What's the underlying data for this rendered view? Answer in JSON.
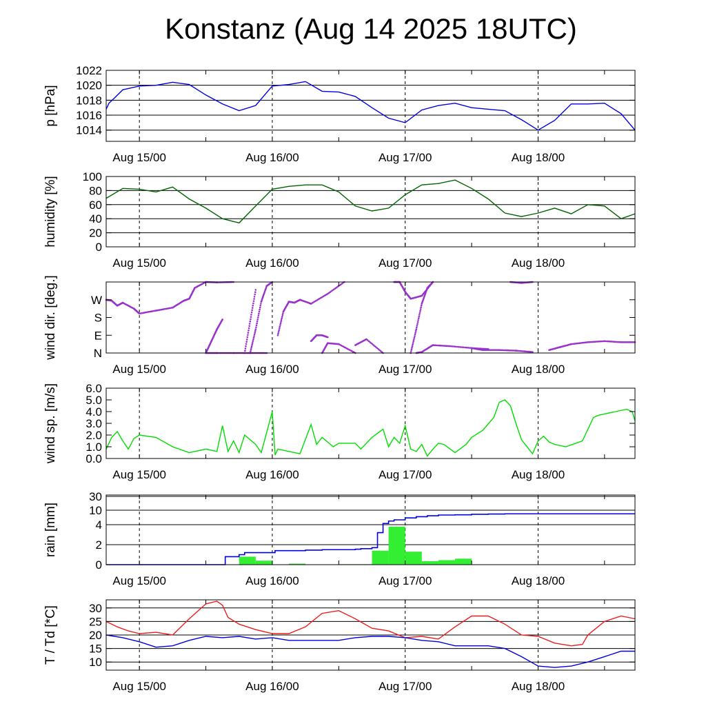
{
  "title": "Konstanz (Aug 14 2025 18UTC)",
  "x_tick_labels": [
    "Aug 15/00",
    "Aug 16/00",
    "Aug 17/00",
    "Aug 18/00"
  ],
  "chart_data": [
    {
      "type": "line",
      "ylabel": "p [hPa]",
      "ylim": [
        1012.5,
        1022
      ],
      "yticks": [
        1014,
        1016,
        1018,
        1020,
        1022
      ],
      "grid_y": [
        1014,
        1016,
        1018,
        1020
      ],
      "color": "#0000e0",
      "series": [
        {
          "x": [
            0,
            0.5,
            1.5,
            3,
            6,
            9,
            12,
            15,
            18,
            21,
            24,
            27,
            30,
            33,
            36,
            39,
            42,
            45,
            48,
            51,
            54,
            57,
            60,
            63,
            66,
            69,
            72,
            75,
            78,
            81,
            84,
            87,
            90,
            93,
            95.5
          ],
          "y": [
            1016.8,
            1017.6,
            1018.3,
            1019.4,
            1019.9,
            1020.0,
            1020.4,
            1020.1,
            1018.7,
            1017.5,
            1016.6,
            1017.3,
            1019.9,
            1020.1,
            1020.5,
            1019.2,
            1019.1,
            1018.5,
            1017.0,
            1015.6,
            1015.0,
            1016.7,
            1017.3,
            1017.6,
            1017.0,
            1016.8,
            1016.6,
            1015.4,
            1014.0,
            1015.3,
            1017.5,
            1017.5,
            1017.6,
            1016.2,
            1014.0
          ]
        }
      ]
    },
    {
      "type": "line",
      "ylabel": "humidity [%]",
      "ylim": [
        0,
        100
      ],
      "yticks": [
        0,
        20,
        40,
        60,
        80,
        100
      ],
      "grid_y": [
        20,
        40,
        60,
        80
      ],
      "color": "#006400",
      "series": [
        {
          "x": [
            0,
            3,
            6,
            9,
            12,
            15,
            18,
            21,
            24,
            27,
            30,
            33,
            36,
            39,
            42,
            45,
            48,
            51,
            54,
            57,
            60,
            63,
            66,
            69,
            72,
            75,
            78,
            81,
            84,
            87,
            90,
            93,
            95.5
          ],
          "y": [
            69,
            83,
            82,
            78,
            85,
            68,
            55,
            40,
            34,
            58,
            82,
            86,
            88,
            88,
            78,
            58,
            51,
            55,
            74,
            88,
            90,
            95,
            83,
            68,
            48,
            43,
            48,
            55,
            47,
            60,
            58,
            40,
            47
          ]
        }
      ]
    },
    {
      "type": "scatter",
      "ylabel": "wind dir. [deg.]",
      "ylim": [
        0,
        360
      ],
      "ytick_labels": [
        "N",
        "E",
        "S",
        "W"
      ],
      "yticks": [
        0,
        90,
        180,
        270
      ],
      "color": "#9932cc",
      "series": [
        {
          "x": [
            0,
            1,
            2,
            3,
            5,
            6
          ],
          "y": [
            270,
            265,
            240,
            255,
            225,
            200
          ]
        },
        {
          "x": [
            6,
            9,
            12,
            14,
            15,
            16,
            18
          ],
          "y": [
            200,
            215,
            230,
            265,
            275,
            330,
            360
          ]
        },
        {
          "x": [
            18,
            20,
            23,
            26,
            29
          ],
          "y": [
            0,
            0,
            0,
            0,
            0
          ]
        },
        {
          "x": [
            18,
            20,
            23
          ],
          "y": [
            360,
            358,
            360
          ]
        },
        {
          "x": [
            18,
            19,
            20,
            21
          ],
          "y": [
            0,
            60,
            120,
            170
          ]
        },
        {
          "x": [
            25,
            26,
            27
          ],
          "y": [
            0,
            160,
            320
          ]
        },
        {
          "x": [
            26,
            27,
            28,
            29,
            30
          ],
          "y": [
            0,
            120,
            260,
            340,
            360
          ]
        },
        {
          "x": [
            31,
            32,
            33,
            34,
            35,
            37,
            40,
            43
          ],
          "y": [
            90,
            210,
            260,
            255,
            270,
            250,
            300,
            360
          ]
        },
        {
          "x": [
            37,
            38,
            39,
            40
          ],
          "y": [
            60,
            90,
            90,
            80
          ]
        },
        {
          "x": [
            39,
            40,
            42,
            45
          ],
          "y": [
            0,
            50,
            45,
            0
          ]
        },
        {
          "x": [
            45,
            47,
            50
          ],
          "y": [
            40,
            70,
            0
          ]
        },
        {
          "x": [
            52,
            53,
            54,
            55,
            57,
            59
          ],
          "y": [
            360,
            360,
            310,
            275,
            290,
            360
          ]
        },
        {
          "x": [
            55,
            56,
            57,
            58,
            59
          ],
          "y": [
            0,
            120,
            250,
            330,
            360
          ]
        },
        {
          "x": [
            56,
            57,
            59,
            62,
            66,
            69
          ],
          "y": [
            0,
            5,
            40,
            35,
            25,
            20
          ]
        },
        {
          "x": [
            66,
            68,
            71,
            74,
            77
          ],
          "y": [
            25,
            15,
            15,
            12,
            5
          ]
        },
        {
          "x": [
            73,
            75,
            77
          ],
          "y": [
            360,
            355,
            360
          ]
        },
        {
          "x": [
            80,
            82,
            84,
            87,
            90,
            93,
            95.5
          ],
          "y": [
            15,
            30,
            45,
            55,
            60,
            55,
            55
          ]
        }
      ]
    },
    {
      "type": "line",
      "ylabel": "wind sp. [m/s]",
      "ylim": [
        0,
        6
      ],
      "yticks": [
        0.0,
        1.0,
        2.0,
        3.0,
        4.0,
        5.0,
        6.0
      ],
      "ytick_labels": [
        "0.0",
        "1.0",
        "2.0",
        "3.0",
        "4.0",
        "5.0",
        "6.0"
      ],
      "color": "#00dd00",
      "series": [
        {
          "x": [
            0,
            1,
            2,
            3,
            4,
            5,
            6,
            9,
            12,
            15,
            18,
            20,
            21,
            22,
            23,
            24,
            25,
            27,
            28,
            30,
            30.5,
            31,
            32,
            35,
            37,
            38,
            39,
            41,
            42,
            45,
            46,
            48,
            50,
            51,
            52,
            53,
            54,
            55,
            56,
            57,
            58,
            59,
            60,
            61,
            63,
            65,
            66,
            68,
            70,
            71,
            72,
            73,
            74,
            75,
            77,
            78,
            79,
            80,
            81,
            83,
            86,
            88,
            89,
            90,
            92,
            94,
            95,
            95.5
          ],
          "y": [
            0.8,
            1.8,
            2.3,
            1.5,
            0.8,
            1.7,
            2.0,
            1.8,
            1.0,
            0.5,
            0.8,
            0.6,
            2.8,
            0.6,
            1.5,
            0.5,
            2.0,
            1.2,
            0.5,
            4.0,
            0.3,
            0.8,
            0.7,
            0.4,
            2.9,
            1.2,
            1.8,
            1.0,
            1.3,
            1.3,
            0.8,
            1.8,
            2.5,
            1.0,
            1.8,
            1.3,
            2.8,
            0.8,
            0.6,
            1.2,
            0.2,
            0.8,
            1.3,
            1.2,
            0.5,
            1.2,
            1.8,
            2.4,
            3.5,
            4.8,
            5.0,
            4.5,
            3.0,
            1.6,
            0.4,
            1.5,
            1.9,
            1.4,
            1.2,
            1.0,
            1.5,
            3.5,
            3.7,
            3.8,
            4.0,
            4.2,
            4.0,
            3.2
          ]
        }
      ]
    },
    {
      "type": "bar",
      "ylabel": "rain [mm]",
      "yticks": [
        0,
        2,
        4,
        10,
        30
      ],
      "grid_y": [
        2,
        4,
        10,
        30
      ],
      "bar_color": "#33ee33",
      "line_color": "#0000e0",
      "series": [
        {
          "name": "",
          "x_start": [
            21,
            24,
            27,
            30,
            33,
            36,
            39,
            42,
            45,
            48,
            51,
            54,
            57,
            60,
            63,
            66,
            69,
            72,
            75
          ],
          "values": [
            0,
            0.8,
            0.4,
            0,
            0.1,
            0,
            0,
            0.05,
            0.05,
            1.4,
            3.8,
            1.3,
            0.35,
            0.45,
            0.6,
            0,
            0,
            0,
            0
          ]
        },
        {
          "name": "",
          "x": [
            0,
            21,
            21.5,
            24,
            25,
            27,
            29,
            30,
            30.5,
            33,
            36,
            39,
            42,
            45,
            46,
            47,
            48,
            49,
            50,
            51,
            52,
            54,
            56,
            58,
            60,
            63,
            66,
            69,
            72,
            80,
            95.5
          ],
          "y": [
            0,
            0,
            0.8,
            1.0,
            1.2,
            1.2,
            1.2,
            1.2,
            1.4,
            1.4,
            1.45,
            1.5,
            1.5,
            1.55,
            1.6,
            1.6,
            1.7,
            3.2,
            4.5,
            5.5,
            6.0,
            6.8,
            7.3,
            7.7,
            8.0,
            8.1,
            8.3,
            8.4,
            8.5,
            8.5,
            8.5
          ]
        }
      ]
    },
    {
      "type": "line",
      "ylabel": "T / Td [*C]",
      "ylim": [
        7,
        33
      ],
      "yticks": [
        10,
        15,
        20,
        25,
        30
      ],
      "grid_y": [
        10,
        15,
        20,
        25,
        30
      ],
      "series": [
        {
          "name": "",
          "color": "#ee1c1c",
          "x": [
            0,
            2,
            4,
            6,
            9,
            12,
            15,
            18,
            20,
            21,
            22,
            24,
            27,
            30,
            33,
            36,
            39,
            42,
            45,
            48,
            51,
            54,
            57,
            60,
            63,
            66,
            69,
            72,
            75,
            78,
            81,
            84,
            86,
            87,
            90,
            93,
            95.5
          ],
          "y": [
            25,
            23,
            21.5,
            20.5,
            21,
            20,
            26,
            31.5,
            32.5,
            31,
            26.5,
            24,
            22,
            20.5,
            20.5,
            23,
            28,
            29,
            26,
            22.5,
            21.5,
            19,
            19.5,
            18.5,
            23,
            27,
            27,
            24,
            20,
            19.5,
            17,
            16,
            16.5,
            20,
            25,
            27,
            26
          ]
        },
        {
          "name": "",
          "color": "#0000e0",
          "x": [
            0,
            3,
            6,
            9,
            12,
            15,
            18,
            21,
            24,
            27,
            30,
            33,
            36,
            39,
            42,
            45,
            48,
            51,
            54,
            57,
            60,
            63,
            66,
            69,
            72,
            75,
            78,
            81,
            84,
            87,
            90,
            93,
            95.5
          ],
          "y": [
            20,
            19,
            17.5,
            15.5,
            16,
            18,
            19.5,
            19,
            19.5,
            18.5,
            19,
            18,
            18,
            18,
            18,
            19,
            19.5,
            19.5,
            19,
            18,
            17.5,
            16,
            16,
            16,
            15,
            12,
            8.5,
            8,
            8.5,
            10,
            12,
            14,
            14
          ]
        }
      ]
    }
  ]
}
